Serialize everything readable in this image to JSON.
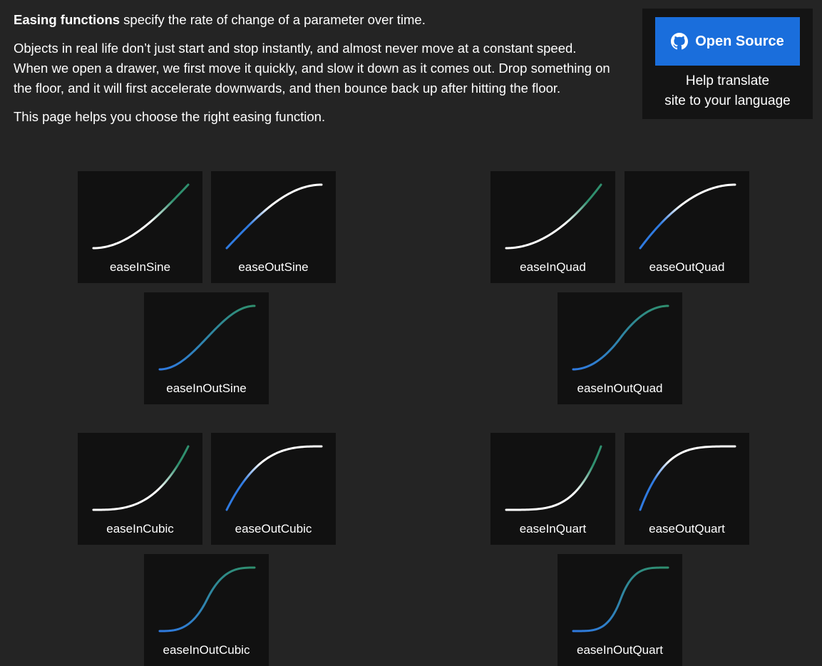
{
  "intro": {
    "bold_lead": "Easing functions",
    "lead_rest": " specify the rate of change of a parameter over time.",
    "paragraph2": "Objects in real life don’t just start and stop instantly, and almost never move at a constant speed. When we open a drawer, we first move it quickly, and slow it down as it comes out. Drop something on the floor, and it will first accelerate downwards, and then bounce back up after hitting the floor.",
    "paragraph3": "This page helps you choose the right easing function."
  },
  "side": {
    "open_source_label": "Open Source",
    "icon": "github-icon",
    "translate_line1": "Help translate",
    "translate_line2": "site to your language"
  },
  "colors": {
    "background": "#242424",
    "card": "#111111",
    "button": "#1a6edc",
    "curve_blue": "#2f7ae0",
    "curve_green": "#2f8f6e",
    "curve_white": "#ffffff"
  },
  "easings": [
    {
      "name": "easeInSine",
      "fn": "inSine"
    },
    {
      "name": "easeOutSine",
      "fn": "outSine"
    },
    {
      "name": "easeInOutSine",
      "fn": "inOutSine"
    },
    {
      "name": "easeInQuad",
      "fn": "inQuad"
    },
    {
      "name": "easeOutQuad",
      "fn": "outQuad"
    },
    {
      "name": "easeInOutQuad",
      "fn": "inOutQuad"
    },
    {
      "name": "easeInCubic",
      "fn": "inCubic"
    },
    {
      "name": "easeOutCubic",
      "fn": "outCubic"
    },
    {
      "name": "easeInOutCubic",
      "fn": "inOutCubic"
    },
    {
      "name": "easeInQuart",
      "fn": "inQuart"
    },
    {
      "name": "easeOutQuart",
      "fn": "outQuart"
    },
    {
      "name": "easeInOutQuart",
      "fn": "inOutQuart"
    }
  ]
}
